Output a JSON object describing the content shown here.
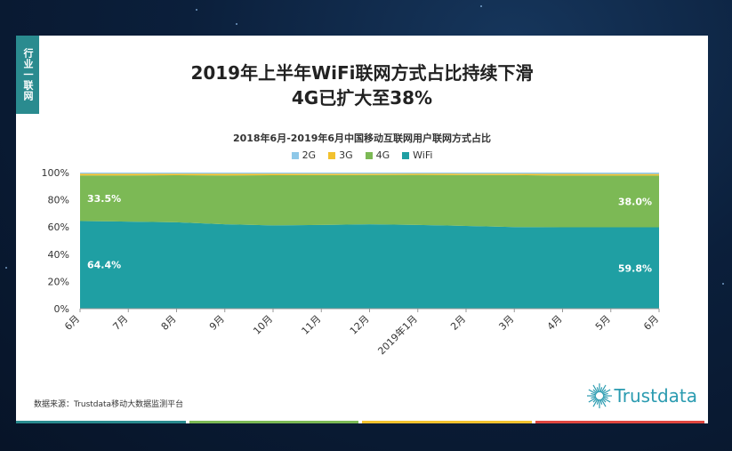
{
  "slide": {
    "side_tag": "行业一联网",
    "title_line1": "2019年上半年WiFi联网方式占比持续下滑",
    "title_line2": "4G已扩大至38%",
    "source": "数据来源：Trustdata移动大数据监测平台",
    "logo_text": "Trustdata"
  },
  "colors": {
    "2G": "#8ec8e8",
    "3G": "#f2c12e",
    "4G": "#7cb955",
    "WiFi": "#1f9fa3",
    "bottom_bar": [
      "#2a8b8f",
      "#7cb955",
      "#f2c12e",
      "#e0463f"
    ]
  },
  "chart_data": {
    "type": "area",
    "stacked": true,
    "title": "2018年6月-2019年6月中国移动互联网用户联网方式占比",
    "categories": [
      "6月",
      "7月",
      "8月",
      "9月",
      "10月",
      "11月",
      "12月",
      "2019年1月",
      "2月",
      "3月",
      "4月",
      "5月",
      "6月"
    ],
    "series": [
      {
        "name": "WiFi",
        "values": [
          64.4,
          64.0,
          63.5,
          62.0,
          61.2,
          61.5,
          62.0,
          61.5,
          60.8,
          60.0,
          59.8,
          59.8,
          59.8
        ]
      },
      {
        "name": "4G",
        "values": [
          33.5,
          33.9,
          34.5,
          35.9,
          36.8,
          36.6,
          36.2,
          36.8,
          37.4,
          38.1,
          38.0,
          38.0,
          38.0
        ]
      },
      {
        "name": "3G",
        "values": [
          1.3,
          1.3,
          1.2,
          1.3,
          1.2,
          1.1,
          1.0,
          1.0,
          1.0,
          1.1,
          1.2,
          1.1,
          1.1
        ]
      },
      {
        "name": "2G",
        "values": [
          0.8,
          0.8,
          0.8,
          0.8,
          0.8,
          0.8,
          0.8,
          0.7,
          0.8,
          0.8,
          1.0,
          1.1,
          1.1
        ]
      }
    ],
    "legend_order": [
      "2G",
      "3G",
      "4G",
      "WiFi"
    ],
    "y_ticks": [
      "0%",
      "20%",
      "40%",
      "60%",
      "80%",
      "100%"
    ],
    "ylim": [
      0,
      100
    ],
    "data_labels": [
      {
        "series": "4G",
        "index": 0,
        "text": "33.5%"
      },
      {
        "series": "WiFi",
        "index": 0,
        "text": "64.4%"
      },
      {
        "series": "4G",
        "index": 12,
        "text": "38.0%"
      },
      {
        "series": "WiFi",
        "index": 12,
        "text": "59.8%"
      }
    ],
    "legend_position": "top"
  }
}
